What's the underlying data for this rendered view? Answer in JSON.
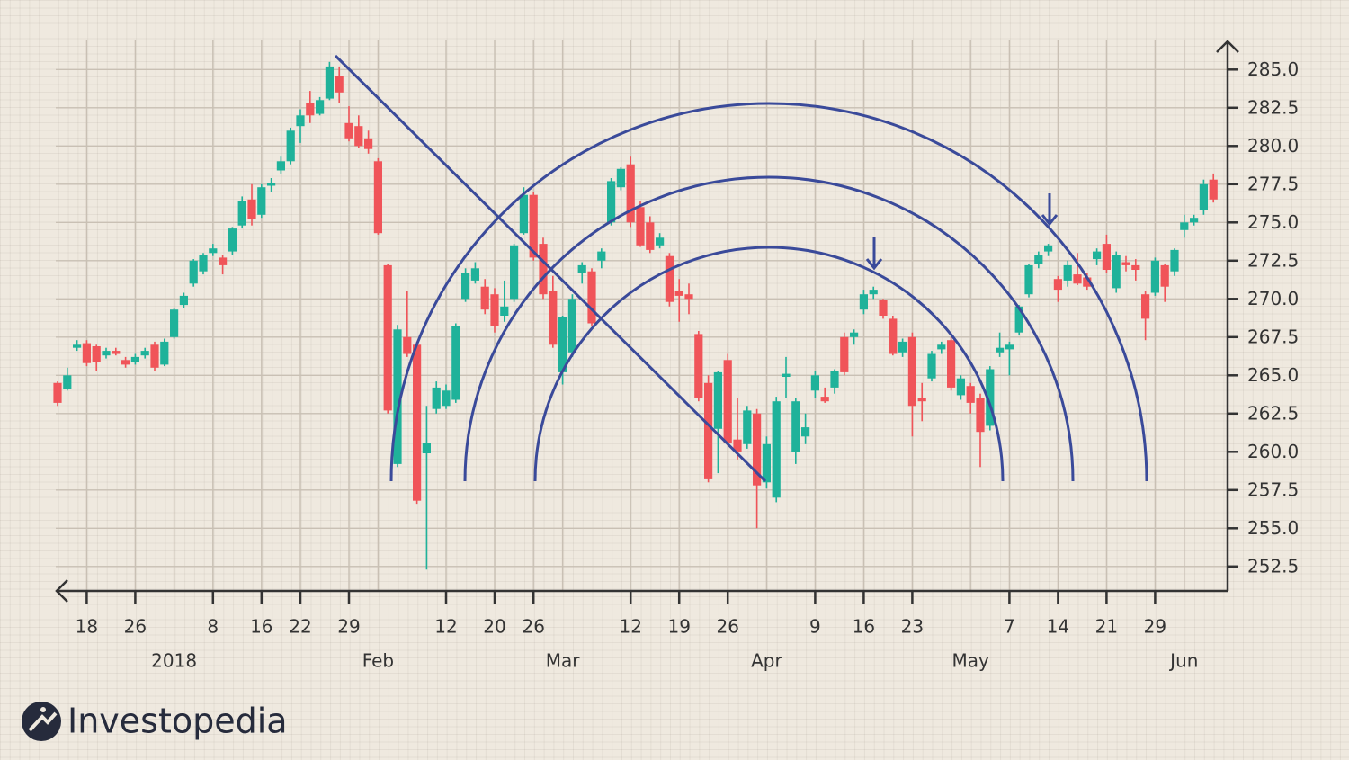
{
  "chart_data": {
    "type": "candlestick",
    "brand": "Investopedia",
    "up_color": "#1fb29a",
    "down_color": "#f05459",
    "grid": true,
    "ylim": [
      250.9,
      286.9
    ],
    "yticks": [
      252.5,
      {
        "value": 255,
        "label": "255.0"
      },
      257.5,
      {
        "value": 260,
        "label": "260.0"
      },
      262.5,
      {
        "value": 265,
        "label": "265.0"
      },
      267.5,
      {
        "value": 270,
        "label": "270.0"
      },
      272.5,
      {
        "value": 275,
        "label": "275.0"
      },
      277.5,
      {
        "value": 280,
        "label": "280.0"
      },
      282.5,
      {
        "value": 285,
        "label": "285.0"
      }
    ],
    "categories": [
      null,
      null,
      null,
      "18",
      null,
      null,
      null,
      null,
      "26",
      null,
      null,
      null,
      null,
      null,
      null,
      null,
      "8",
      null,
      null,
      null,
      null,
      "16",
      null,
      null,
      null,
      "22",
      null,
      null,
      null,
      null,
      "29",
      null,
      null,
      null,
      null,
      null,
      null,
      null,
      null,
      null,
      "12",
      null,
      null,
      null,
      null,
      "20",
      null,
      null,
      null,
      "26",
      null,
      null,
      null,
      null,
      null,
      null,
      null,
      null,
      null,
      "12",
      null,
      null,
      null,
      null,
      "19",
      null,
      null,
      null,
      null,
      "26",
      null,
      null,
      null,
      null,
      null,
      null,
      null,
      null,
      "9",
      null,
      null,
      null,
      null,
      "16",
      null,
      null,
      null,
      null,
      "23",
      null,
      null,
      null,
      null,
      null,
      null,
      null,
      null,
      null,
      "7",
      null,
      null,
      null,
      null,
      "14",
      null,
      null,
      null,
      null,
      "21",
      null,
      null,
      null,
      null,
      "29",
      null,
      null,
      null,
      null,
      null,
      null
    ],
    "period_labels": [
      null,
      null,
      null,
      null,
      null,
      null,
      null,
      null,
      null,
      null,
      null,
      null,
      "2018",
      null,
      null,
      null,
      null,
      null,
      null,
      null,
      null,
      null,
      null,
      null,
      null,
      null,
      null,
      null,
      null,
      null,
      null,
      null,
      null,
      "Feb",
      null,
      null,
      null,
      null,
      null,
      null,
      null,
      null,
      null,
      null,
      null,
      null,
      null,
      null,
      null,
      null,
      null,
      null,
      "Mar",
      null,
      null,
      null,
      null,
      null,
      null,
      null,
      null,
      null,
      null,
      null,
      null,
      null,
      null,
      null,
      null,
      null,
      null,
      null,
      null,
      "Apr",
      null,
      null,
      null,
      null,
      null,
      null,
      null,
      null,
      null,
      null,
      null,
      null,
      null,
      null,
      null,
      null,
      null,
      null,
      null,
      null,
      "May",
      null,
      null,
      null,
      null,
      null,
      null,
      null,
      null,
      null,
      null,
      null,
      null,
      null,
      null,
      null,
      null,
      null,
      null,
      null,
      null,
      null,
      "Jun",
      null,
      null,
      null
    ],
    "open": [
      264.5,
      264.1,
      266.8,
      267.1,
      266.9,
      266.3,
      266.6,
      266.0,
      265.9,
      266.3,
      267.0,
      265.7,
      267.5,
      269.6,
      271.0,
      271.8,
      273.0,
      272.7,
      273.1,
      274.8,
      276.5,
      275.5,
      277.4,
      278.4,
      279.0,
      281.3,
      282.8,
      282.1,
      283.1,
      284.6,
      281.5,
      281.3,
      280.5,
      279.0,
      272.2,
      259.2,
      267.5,
      267.0,
      259.9,
      262.8,
      263.0,
      263.4,
      270.0,
      271.2,
      270.8,
      270.3,
      268.9,
      270.0,
      274.3,
      276.8,
      273.6,
      270.5,
      265.2,
      266.5,
      271.7,
      271.8,
      272.5,
      275.0,
      277.3,
      278.8,
      276.0,
      275.0,
      273.5,
      272.8,
      270.5,
      270.3,
      267.7,
      264.5,
      261.5,
      266.0,
      260.8,
      260.5,
      262.5,
      258.0,
      257.0,
      264.9,
      260.0,
      261.0,
      264.0,
      263.6,
      264.2,
      267.5,
      267.5,
      269.3,
      270.3,
      269.9,
      268.7,
      266.5,
      267.5,
      263.5,
      264.8,
      266.7,
      267.3,
      263.7,
      264.3,
      263.5,
      261.7,
      266.5,
      266.7,
      267.8,
      270.3,
      272.3,
      273.1,
      271.3,
      271.2,
      271.6,
      271.4,
      272.6,
      273.6,
      270.7,
      272.4,
      272.2,
      270.3,
      270.4,
      272.2,
      271.8,
      274.5,
      275.0,
      275.8,
      277.8
    ],
    "high": [
      264.6,
      265.5,
      267.3,
      267.3,
      267.0,
      266.8,
      266.8,
      266.2,
      266.4,
      266.8,
      267.2,
      267.4,
      269.4,
      270.4,
      272.6,
      273.0,
      273.6,
      272.9,
      274.7,
      276.7,
      277.5,
      277.5,
      277.9,
      279.3,
      281.2,
      282.4,
      283.6,
      283.2,
      285.5,
      285.2,
      282.6,
      282.0,
      281.0,
      279.2,
      272.3,
      268.3,
      270.5,
      267.2,
      263.0,
      264.6,
      264.4,
      268.4,
      272.0,
      272.4,
      271.3,
      270.7,
      271.2,
      273.6,
      277.3,
      277.0,
      274.0,
      271.5,
      268.9,
      270.3,
      272.4,
      272.0,
      273.3,
      277.9,
      278.6,
      279.3,
      276.4,
      275.4,
      274.3,
      273.0,
      271.3,
      271.0,
      267.9,
      265.0,
      265.3,
      266.4,
      263.5,
      263.0,
      262.8,
      261.0,
      263.6,
      266.2,
      263.5,
      262.5,
      265.3,
      264.2,
      265.4,
      267.8,
      268.0,
      270.6,
      270.8,
      270.0,
      268.9,
      267.4,
      267.8,
      264.5,
      266.6,
      267.2,
      267.5,
      265.0,
      264.5,
      263.8,
      265.6,
      267.8,
      267.2,
      269.6,
      272.3,
      273.1,
      273.6,
      271.5,
      272.5,
      273.0,
      271.7,
      273.3,
      274.2,
      273.1,
      272.8,
      272.6,
      270.5,
      272.7,
      272.3,
      273.3,
      275.5,
      275.5,
      277.8,
      278.2
    ],
    "low": [
      263.0,
      264.0,
      266.6,
      265.6,
      265.3,
      266.1,
      266.3,
      265.5,
      265.7,
      266.1,
      265.3,
      265.6,
      267.4,
      269.4,
      270.8,
      271.6,
      272.8,
      271.6,
      272.9,
      274.6,
      274.8,
      275.3,
      277.0,
      278.2,
      278.8,
      280.2,
      281.5,
      282.0,
      283.0,
      282.8,
      280.3,
      279.9,
      279.5,
      274.2,
      262.5,
      259.0,
      266.2,
      256.6,
      252.3,
      262.5,
      262.8,
      263.2,
      269.8,
      271.0,
      269.0,
      267.8,
      268.5,
      269.8,
      274.2,
      272.5,
      270.0,
      266.8,
      264.4,
      266.2,
      271.0,
      268.2,
      272.0,
      274.8,
      277.1,
      274.7,
      273.4,
      273.0,
      273.3,
      269.5,
      268.5,
      269.0,
      263.3,
      258.0,
      258.6,
      260.4,
      259.5,
      260.2,
      255.0,
      257.6,
      256.7,
      263.5,
      259.2,
      260.5,
      263.5,
      263.2,
      263.8,
      265.0,
      267.0,
      269.0,
      270.0,
      268.7,
      266.3,
      266.2,
      261.0,
      262.0,
      264.6,
      266.4,
      264.0,
      263.4,
      262.5,
      259.0,
      261.4,
      266.2,
      265.0,
      267.6,
      270.1,
      272.0,
      272.8,
      269.8,
      270.8,
      270.9,
      270.6,
      272.2,
      271.7,
      270.4,
      271.8,
      271.2,
      267.3,
      270.2,
      269.8,
      271.5,
      274.0,
      274.8,
      275.5,
      276.3
    ],
    "close": [
      263.2,
      265.0,
      267.0,
      265.8,
      265.9,
      266.6,
      266.4,
      265.7,
      266.2,
      266.6,
      265.5,
      267.2,
      269.3,
      270.2,
      272.5,
      272.9,
      273.3,
      272.2,
      274.6,
      276.4,
      275.2,
      277.3,
      277.6,
      279.0,
      281.0,
      282.0,
      282.0,
      283.0,
      285.2,
      283.5,
      280.5,
      280.0,
      279.8,
      274.3,
      262.7,
      268.0,
      266.4,
      256.8,
      260.6,
      264.2,
      264.0,
      268.2,
      271.7,
      272.0,
      269.3,
      268.2,
      269.5,
      273.5,
      276.8,
      272.7,
      270.3,
      267.0,
      268.8,
      270.0,
      272.2,
      268.4,
      273.1,
      277.7,
      278.5,
      275.0,
      273.5,
      273.2,
      274.0,
      269.8,
      270.2,
      270.0,
      263.5,
      258.2,
      265.2,
      260.6,
      260.0,
      262.7,
      257.8,
      260.5,
      263.3,
      265.1,
      263.3,
      261.6,
      265.0,
      263.3,
      265.3,
      265.2,
      267.8,
      270.3,
      270.6,
      268.9,
      266.4,
      267.2,
      263.0,
      263.3,
      266.4,
      267.0,
      264.2,
      264.8,
      263.2,
      261.3,
      265.4,
      266.8,
      267.0,
      269.5,
      272.2,
      272.9,
      273.5,
      270.6,
      272.2,
      271.0,
      270.8,
      273.1,
      271.9,
      272.9,
      272.2,
      271.9,
      268.7,
      272.5,
      270.8,
      273.2,
      275.0,
      275.3,
      277.5,
      276.5
    ]
  }
}
